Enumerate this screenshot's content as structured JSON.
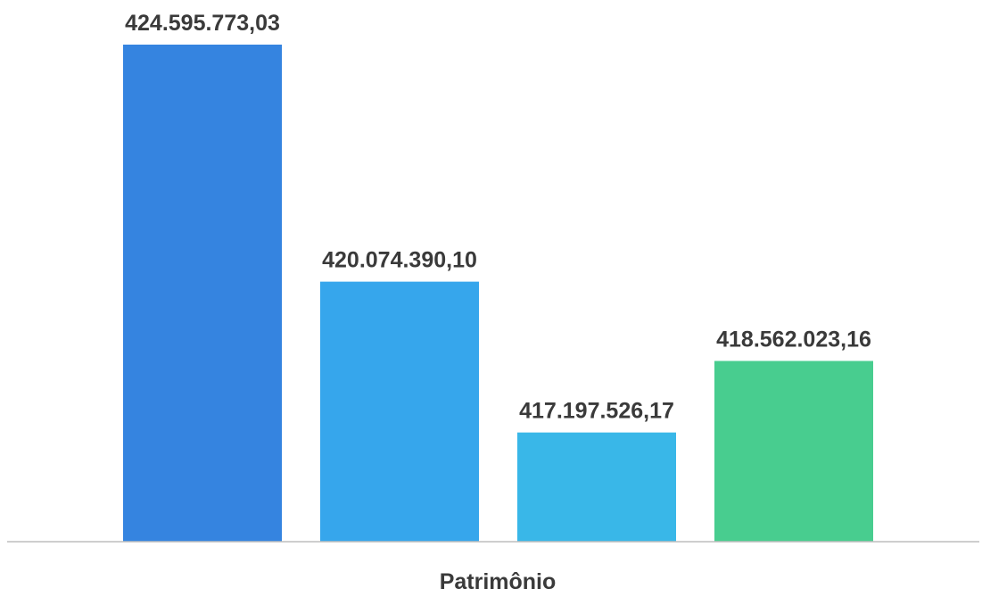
{
  "chart_data": {
    "type": "bar",
    "categories": [
      "Patrimônio"
    ],
    "series": [
      {
        "values": [
          424595773.03
        ],
        "color": "#3584e0",
        "label": "424.595.773,03"
      },
      {
        "values": [
          420074390.1
        ],
        "color": "#36a6ec",
        "label": "420.074.390,10"
      },
      {
        "values": [
          417197526.17
        ],
        "color": "#39b7e8",
        "label": "417.197.526,17"
      },
      {
        "values": [
          418562023.16
        ],
        "color": "#48cd8f",
        "label": "418.562.023,16"
      }
    ],
    "title": "",
    "xlabel": "",
    "ylabel": "",
    "grid": false,
    "legend": "none"
  }
}
